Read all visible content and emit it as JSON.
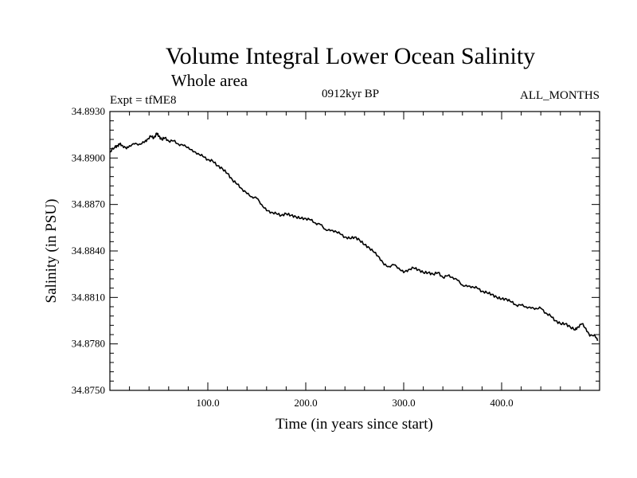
{
  "chart_data": {
    "type": "line",
    "title": "Volume Integral Lower Ocean Salinity",
    "subtitle": "Whole area",
    "annotations": {
      "experiment": "Expt = tfME8",
      "period": "0912kyr BP",
      "months": "ALL_MONTHS"
    },
    "xlabel": "Time (in years since start)",
    "ylabel": "Salinity (in PSU)",
    "xlim": [
      0,
      500
    ],
    "ylim": [
      34.875,
      34.893
    ],
    "x_ticks": [
      100,
      200,
      300,
      400
    ],
    "x_tick_labels": [
      "100.0",
      "200.0",
      "300.0",
      "400.0"
    ],
    "y_ticks": [
      34.875,
      34.878,
      34.881,
      34.884,
      34.887,
      34.89,
      34.893
    ],
    "y_tick_labels": [
      "34.8750",
      "34.8780",
      "34.8810",
      "34.8840",
      "34.8870",
      "34.8900",
      "34.8930"
    ],
    "grid": false,
    "series": [
      {
        "name": "Salinity",
        "x": [
          0,
          5,
          8,
          10,
          13,
          17,
          20,
          25,
          30,
          35,
          38,
          42,
          45,
          48,
          50,
          53,
          56,
          60,
          65,
          70,
          75,
          80,
          85,
          90,
          95,
          100,
          105,
          110,
          115,
          120,
          125,
          130,
          135,
          140,
          145,
          150,
          155,
          160,
          165,
          170,
          175,
          180,
          185,
          190,
          195,
          200,
          205,
          210,
          215,
          220,
          225,
          230,
          235,
          240,
          245,
          250,
          255,
          260,
          265,
          270,
          275,
          280,
          285,
          290,
          295,
          300,
          305,
          310,
          315,
          320,
          325,
          330,
          335,
          340,
          345,
          350,
          355,
          360,
          365,
          370,
          375,
          380,
          385,
          390,
          395,
          400,
          405,
          410,
          415,
          420,
          425,
          430,
          435,
          440,
          445,
          450,
          455,
          460,
          465,
          470,
          475,
          478,
          482,
          486,
          490,
          495,
          498
        ],
        "values": [
          34.8904,
          34.8907,
          34.8908,
          34.8909,
          34.8908,
          34.8906,
          34.8908,
          34.8909,
          34.8909,
          34.891,
          34.8912,
          34.8914,
          34.8913,
          34.8916,
          34.8914,
          34.8912,
          34.8913,
          34.8911,
          34.8911,
          34.8909,
          34.8908,
          34.8907,
          34.8904,
          34.8903,
          34.8901,
          34.8899,
          34.8898,
          34.8895,
          34.8893,
          34.889,
          34.8886,
          34.8883,
          34.888,
          34.8877,
          34.8875,
          34.8874,
          34.887,
          34.8866,
          34.8865,
          34.8864,
          34.8863,
          34.8864,
          34.8863,
          34.8862,
          34.8861,
          34.8861,
          34.886,
          34.8858,
          34.8857,
          34.8854,
          34.8853,
          34.8853,
          34.8851,
          34.8849,
          34.8848,
          34.8849,
          34.8847,
          34.8844,
          34.8842,
          34.8839,
          34.8836,
          34.8831,
          34.883,
          34.8831,
          34.8829,
          34.8826,
          34.8828,
          34.8829,
          34.8828,
          34.8826,
          34.8826,
          34.8825,
          34.8826,
          34.8823,
          34.8824,
          34.8823,
          34.8821,
          34.8818,
          34.8817,
          34.8817,
          34.8816,
          34.8814,
          34.8813,
          34.8812,
          34.881,
          34.8809,
          34.8809,
          34.8807,
          34.8805,
          34.8805,
          34.8804,
          34.8803,
          34.8803,
          34.8803,
          34.88,
          34.8798,
          34.8795,
          34.8793,
          34.8793,
          34.8791,
          34.8789,
          34.8791,
          34.8793,
          34.879,
          34.8785,
          34.8786,
          34.8782
        ]
      }
    ]
  },
  "colors": {
    "line": "#000000",
    "background": "#ffffff"
  }
}
